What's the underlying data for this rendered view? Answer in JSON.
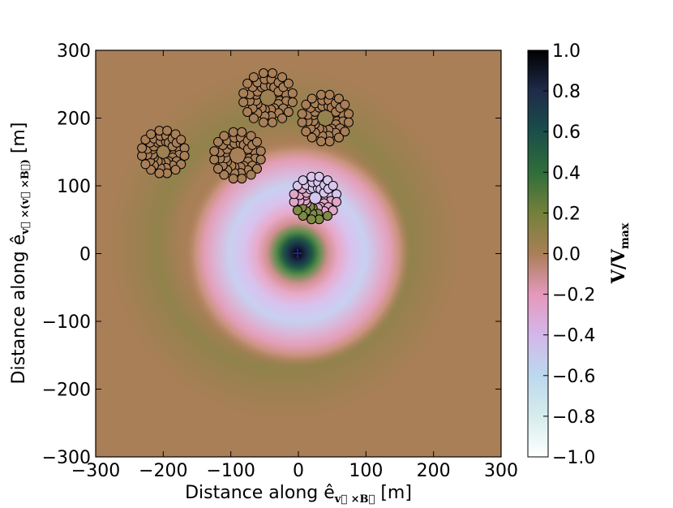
{
  "chart_data": {
    "type": "heatmap",
    "title": "",
    "xlabel": "Distance along ê",
    "xlabel_sub": "v⃗ ×B⃗",
    "xlabel_unit": " [m]",
    "ylabel": "Distance along ê",
    "ylabel_sub": "v⃗ ×(v⃗ ×B⃗)",
    "ylabel_unit": " [m]",
    "xlim": [
      -300,
      300
    ],
    "ylim": [
      -300,
      300
    ],
    "x_ticks": [
      "−300",
      "−200",
      "−100",
      "0",
      "100",
      "200",
      "300"
    ],
    "x_tick_values": [
      -300,
      -200,
      -100,
      0,
      100,
      200,
      300
    ],
    "y_ticks": [
      "−300",
      "−200",
      "−100",
      "0",
      "100",
      "200",
      "300"
    ],
    "y_tick_values": [
      -300,
      -200,
      -100,
      0,
      100,
      200,
      300
    ],
    "colorbar": {
      "label": "V/V",
      "label_sub": "max",
      "range": [
        -1.0,
        1.0
      ],
      "ticks": [
        "−1.0",
        "−0.8",
        "−0.6",
        "−0.4",
        "−0.2",
        "0.0",
        "0.2",
        "0.4",
        "0.6",
        "0.8",
        "1.0"
      ],
      "tick_values": [
        -1.0,
        -0.8,
        -0.6,
        -0.4,
        -0.2,
        0.0,
        0.2,
        0.4,
        0.6,
        0.8,
        1.0
      ],
      "colors": [
        {
          "v": -1.0,
          "c": "#ffffff"
        },
        {
          "v": -0.8,
          "c": "#d6ecec"
        },
        {
          "v": -0.6,
          "c": "#bcd8ee"
        },
        {
          "v": -0.4,
          "c": "#d3b7ea"
        },
        {
          "v": -0.2,
          "c": "#e598bc"
        },
        {
          "v": 0.0,
          "c": "#a97f57"
        },
        {
          "v": 0.2,
          "c": "#74803b"
        },
        {
          "v": 0.4,
          "c": "#2f6e3a"
        },
        {
          "v": 0.6,
          "c": "#1a4e4a"
        },
        {
          "v": 0.8,
          "c": "#1f2b4a"
        },
        {
          "v": 1.0,
          "c": "#000000"
        }
      ]
    },
    "background_value": 0.0,
    "core_marker": {
      "x": 0,
      "y": 0,
      "symbol": "+",
      "color": "#2222cc"
    },
    "station_clusters": [
      {
        "center": [
          -200,
          150
        ],
        "radius_inner": 16,
        "radius_outer": 32,
        "value": 0.0
      },
      {
        "center": [
          -90,
          145
        ],
        "radius_inner": 18,
        "radius_outer": 35,
        "value": 0.0
      },
      {
        "center": [
          -45,
          230
        ],
        "radius_inner": 18,
        "radius_outer": 37,
        "value": 0.0
      },
      {
        "center": [
          40,
          200
        ],
        "radius_inner": 18,
        "radius_outer": 35,
        "value": 0.0
      },
      {
        "center": [
          25,
          82
        ],
        "radius_inner": 15,
        "radius_outer": 32,
        "value": -0.35
      }
    ]
  }
}
